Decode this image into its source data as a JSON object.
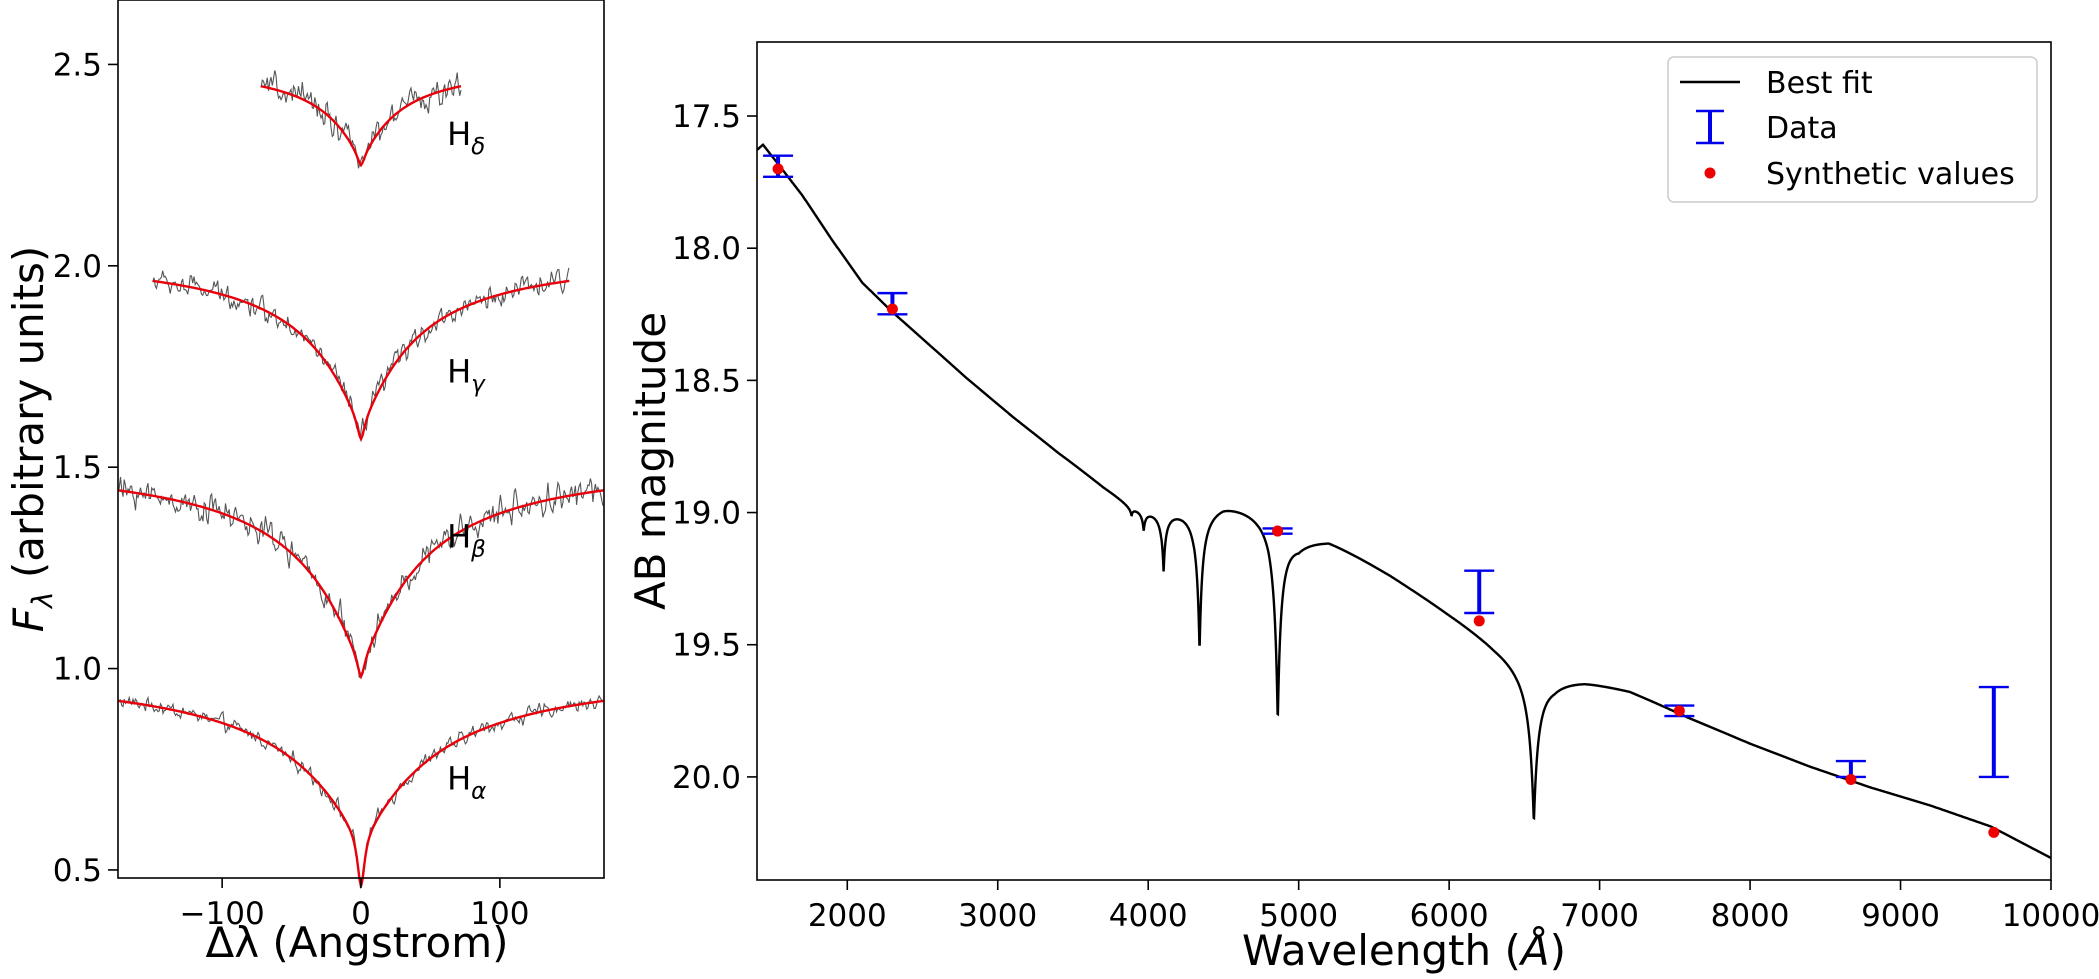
{
  "chart_data": [
    {
      "type": "line",
      "title": "",
      "xlabel": "Δλ (Angstrom)",
      "ylabel_symbol": "F",
      "ylabel_subscript": "λ",
      "ylabel_text": " (arbitrary units)",
      "xlim": [
        -175,
        175
      ],
      "ylim": [
        0.48,
        2.66
      ],
      "xticks": [
        -100,
        0,
        100
      ],
      "xtick_labels": [
        "−100",
        "0",
        "100"
      ],
      "yticks": [
        0.5,
        1.0,
        1.5,
        2.0,
        2.5
      ],
      "ytick_labels": [
        "0.5",
        "1.0",
        "1.5",
        "2.0",
        "2.5"
      ],
      "colors": {
        "data": "#555555",
        "model": "#e8000b"
      },
      "lines": [
        {
          "name": "H",
          "sub": "α",
          "range": [
            -175,
            175
          ],
          "continuum": 1.0,
          "depth": 0.42,
          "width": 55,
          "core_depth": 0.12,
          "core_width": 3,
          "noise": 0.018,
          "label_at": [
            62,
            0.73
          ]
        },
        {
          "name": "H",
          "sub": "β",
          "range": [
            -175,
            175
          ],
          "continuum": 1.52,
          "depth": 0.5,
          "width": 45,
          "core_depth": 0.04,
          "core_width": 3,
          "noise": 0.035,
          "label_at": [
            62,
            1.33
          ]
        },
        {
          "name": "H",
          "sub": "γ",
          "range": [
            -150,
            150
          ],
          "continuum": 2.03,
          "depth": 0.42,
          "width": 40,
          "core_depth": 0.04,
          "core_width": 3,
          "noise": 0.028,
          "label_at": [
            62,
            1.74
          ]
        },
        {
          "name": "H",
          "sub": "δ",
          "range": [
            -72,
            72
          ],
          "continuum": 2.5,
          "depth": 0.23,
          "width": 28,
          "core_depth": 0.02,
          "core_width": 3,
          "noise": 0.035,
          "label_at": [
            62,
            2.33
          ]
        }
      ]
    },
    {
      "type": "line",
      "title": "",
      "xlabel": "Wavelength (",
      "xlabel_unit": "Å",
      "xlabel_end": ")",
      "ylabel": "AB magnitude",
      "xlim": [
        1400,
        10000
      ],
      "ylim": [
        20.39,
        17.22
      ],
      "xticks": [
        2000,
        3000,
        4000,
        5000,
        6000,
        7000,
        8000,
        9000,
        10000
      ],
      "xtick_labels": [
        "2000",
        "3000",
        "4000",
        "5000",
        "6000",
        "7000",
        "8000",
        "9000",
        "10000"
      ],
      "yticks": [
        17.5,
        18.0,
        18.5,
        19.0,
        19.5,
        20.0
      ],
      "ytick_labels": [
        "17.5",
        "18.0",
        "18.5",
        "19.0",
        "19.5",
        "20.0"
      ],
      "colors": {
        "fit": "#000000",
        "data": "#0000ee",
        "synthetic": "#ee0000"
      },
      "legend": {
        "position": "upper-right",
        "entries": [
          "Best fit",
          "Data",
          "Synthetic values"
        ]
      },
      "best_fit_continuum": [
        [
          1400,
          17.62
        ],
        [
          1440,
          17.6
        ],
        [
          1550,
          17.68
        ],
        [
          1700,
          17.79
        ],
        [
          1900,
          17.96
        ],
        [
          2100,
          18.12
        ],
        [
          2300,
          18.23
        ],
        [
          2500,
          18.33
        ],
        [
          2800,
          18.48
        ],
        [
          3100,
          18.62
        ],
        [
          3400,
          18.75
        ],
        [
          3700,
          18.87
        ],
        [
          3880,
          18.93
        ],
        [
          4000,
          18.93
        ],
        [
          4200,
          18.92
        ],
        [
          4500,
          18.9
        ],
        [
          4800,
          18.93
        ],
        [
          5000,
          19.04
        ],
        [
          5200,
          19.06
        ],
        [
          5600,
          19.2
        ],
        [
          6000,
          19.35
        ],
        [
          6300,
          19.46
        ],
        [
          6700,
          19.58
        ],
        [
          6900,
          19.6
        ],
        [
          7200,
          19.65
        ],
        [
          7600,
          19.76
        ],
        [
          8000,
          19.86
        ],
        [
          8400,
          19.95
        ],
        [
          8800,
          20.03
        ],
        [
          9200,
          20.1
        ],
        [
          9600,
          20.18
        ],
        [
          10000,
          20.3
        ]
      ],
      "absorption_lines": [
        {
          "center": 3889,
          "depth": 0.03,
          "width": 8
        },
        {
          "center": 3970,
          "depth": 0.08,
          "width": 12
        },
        {
          "center": 4102,
          "depth": 0.24,
          "width": 14
        },
        {
          "center": 4341,
          "depth": 0.57,
          "width": 18
        },
        {
          "center": 4861,
          "depth": 0.8,
          "width": 22
        },
        {
          "center": 6563,
          "depth": 0.62,
          "width": 30
        }
      ],
      "data_points": [
        {
          "x": 1540,
          "y": 17.69,
          "err": 0.04
        },
        {
          "x": 2300,
          "y": 18.21,
          "err": 0.04
        },
        {
          "x": 4860,
          "y": 19.07,
          "err": 0.01
        },
        {
          "x": 6200,
          "y": 19.3,
          "err": 0.08
        },
        {
          "x": 7530,
          "y": 19.75,
          "err": 0.02
        },
        {
          "x": 8670,
          "y": 19.97,
          "err": 0.03
        },
        {
          "x": 9620,
          "y": 19.83,
          "err": 0.17
        }
      ],
      "synthetic_points": [
        {
          "x": 1540,
          "y": 17.7
        },
        {
          "x": 2300,
          "y": 18.23
        },
        {
          "x": 4860,
          "y": 19.07
        },
        {
          "x": 6200,
          "y": 19.41
        },
        {
          "x": 7530,
          "y": 19.75
        },
        {
          "x": 8670,
          "y": 20.01
        },
        {
          "x": 9620,
          "y": 20.21
        }
      ]
    }
  ]
}
